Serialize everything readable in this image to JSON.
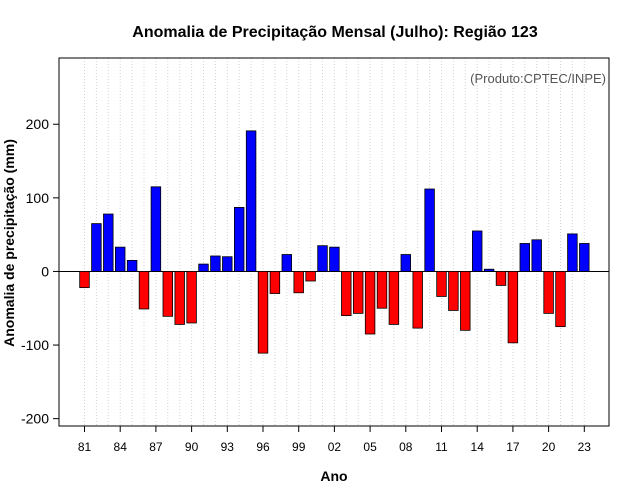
{
  "chart_data": {
    "type": "bar",
    "title": "Anomalia de Precipitação Mensal (Julho): Região 123",
    "xlabel": "Ano",
    "ylabel": "Anomalia de precipitação (mm)",
    "annotation": "(Produto:CPTEC/INPE)",
    "ylim": [
      -210,
      290
    ],
    "yticks": [
      -200,
      -100,
      0,
      100,
      200
    ],
    "grid": true,
    "positive_color": "#0000ff",
    "negative_color": "#ff0000",
    "categories": [
      "81",
      "82",
      "83",
      "84",
      "85",
      "86",
      "87",
      "88",
      "89",
      "90",
      "91",
      "92",
      "93",
      "94",
      "95",
      "96",
      "97",
      "98",
      "99",
      "00",
      "01",
      "02",
      "03",
      "04",
      "05",
      "06",
      "07",
      "08",
      "09",
      "10",
      "11",
      "12",
      "13",
      "14",
      "15",
      "16",
      "17",
      "18",
      "19",
      "20",
      "21",
      "22",
      "23"
    ],
    "tick_labels": [
      "81",
      "84",
      "87",
      "90",
      "93",
      "96",
      "99",
      "02",
      "05",
      "08",
      "11",
      "14",
      "17",
      "20",
      "23"
    ],
    "values": [
      -22,
      65,
      78,
      33,
      15,
      -51,
      115,
      -61,
      -72,
      -70,
      10,
      21,
      20,
      87,
      191,
      -111,
      -30,
      23,
      -29,
      -13,
      35,
      33,
      -60,
      -57,
      -85,
      -50,
      -72,
      23,
      -77,
      112,
      -34,
      -53,
      -80,
      55,
      3,
      -19,
      -97,
      38,
      43,
      -57,
      -75,
      51,
      38
    ]
  }
}
